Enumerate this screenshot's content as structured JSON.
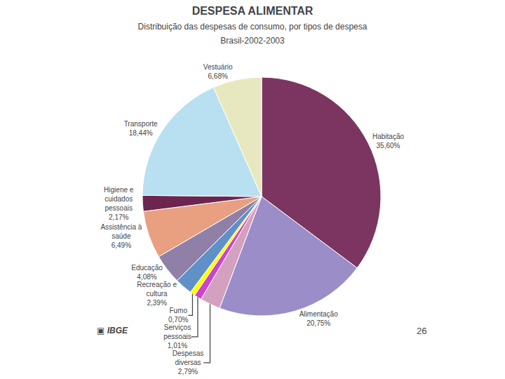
{
  "chart_data": {
    "type": "pie",
    "title": "DESPESA ALIMENTAR",
    "subtitle": "Distribuição das despesas de consumo, por tipos de despesa\nBrasil-2002-2003",
    "annotations": [
      "▣ IBGE",
      "26"
    ],
    "categories": [
      "Habitação",
      "Alimentação",
      "Despesas\ndiversas",
      "Serviços\npessoais",
      "Fumo",
      "Recreação e\ncultura",
      "Educação",
      "Assistência à\nsaúde",
      "Higiene e\ncuidados\npessoais",
      "Transporte",
      "Vestuário"
    ],
    "values": [
      35.6,
      20.75,
      2.79,
      1.01,
      0.7,
      2.39,
      4.08,
      6.49,
      2.17,
      18.44,
      6.68
    ],
    "value_labels": [
      "35,60%",
      "20,75%",
      "2,79%",
      "1,01%",
      "0,70%",
      "2,39%",
      "4,08%",
      "6,49%",
      "2,17%",
      "18,44%",
      "6,68%"
    ],
    "colors": [
      "#7B3560",
      "#9B8DC8",
      "#D4A0C0",
      "#CC44CC",
      "#FFFF00",
      "#6090C8",
      "#9080A8",
      "#E8A080",
      "#6B2550",
      "#B8E0F0",
      "#E8E8C0"
    ],
    "data_labels": true
  }
}
